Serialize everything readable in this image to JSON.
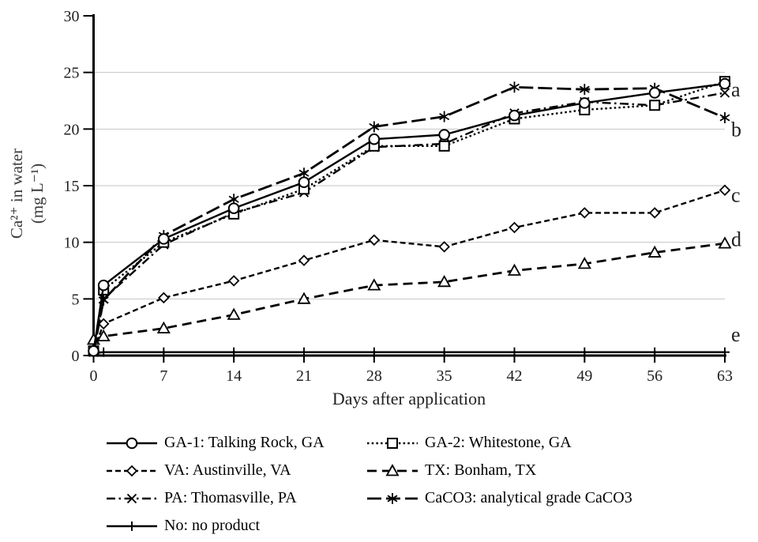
{
  "chart_data": {
    "type": "line",
    "xlabel": "Days after application",
    "ylabel_line1": "Ca²⁺ in water",
    "ylabel_line2": "(mg L⁻¹)",
    "x": [
      0,
      1,
      7,
      14,
      21,
      28,
      35,
      42,
      49,
      56,
      63
    ],
    "xticks": [
      0,
      7,
      14,
      21,
      28,
      35,
      42,
      49,
      56,
      63
    ],
    "yticks": [
      0,
      5,
      10,
      15,
      20,
      25,
      30
    ],
    "xlim": [
      0,
      63
    ],
    "ylim": [
      0,
      30
    ],
    "grid": "horizontal-only",
    "grid_color": "#c4c4c4",
    "line_color": "#000000",
    "legend_position": "bottom",
    "series": [
      {
        "key": "GA-1",
        "name": "GA-1: Talking Rock, GA",
        "marker": "circle",
        "line": "solid",
        "values": [
          0.4,
          6.2,
          10.3,
          13.0,
          15.3,
          19.1,
          19.5,
          21.2,
          22.3,
          23.2,
          24.0
        ]
      },
      {
        "key": "GA-2",
        "name": "GA-2: Whitestone, GA",
        "marker": "square",
        "line": "dotted",
        "values": [
          0.4,
          5.8,
          10.0,
          12.5,
          14.7,
          18.5,
          18.5,
          20.9,
          21.7,
          22.1,
          24.2
        ]
      },
      {
        "key": "VA",
        "name": "VA: Austinville, VA",
        "marker": "diamond",
        "line": "dashed",
        "values": [
          0.4,
          2.8,
          5.1,
          6.6,
          8.4,
          10.2,
          9.6,
          11.3,
          12.6,
          12.6,
          14.6
        ]
      },
      {
        "key": "TX",
        "name": "TX: Bonham, TX",
        "marker": "triangle",
        "line": "longdash",
        "values": [
          1.4,
          1.7,
          2.4,
          3.6,
          5.0,
          6.2,
          6.5,
          7.5,
          8.1,
          9.1,
          9.9
        ]
      },
      {
        "key": "PA",
        "name": "PA: Thomasville, PA",
        "marker": "x",
        "line": "dashdot",
        "values": [
          0.3,
          5.0,
          9.8,
          12.6,
          14.4,
          18.4,
          18.7,
          21.4,
          22.4,
          22.1,
          23.2
        ]
      },
      {
        "key": "CaCO3",
        "name": "CaCO3: analytical grade CaCO3",
        "marker": "asterisk",
        "line": "longdash2",
        "values": [
          0.3,
          4.9,
          10.6,
          13.8,
          16.1,
          20.2,
          21.1,
          23.7,
          23.5,
          23.6,
          21.0
        ]
      },
      {
        "key": "No",
        "name": "No: no product",
        "marker": "plus",
        "line": "solid",
        "values": [
          0.2,
          0.3,
          0.3,
          0.3,
          0.3,
          0.3,
          0.3,
          0.3,
          0.3,
          0.3,
          0.3
        ]
      }
    ],
    "annotations": [
      {
        "label": "a",
        "y": 23.5
      },
      {
        "label": "b",
        "y": 20.0
      },
      {
        "label": "c",
        "y": 14.2
      },
      {
        "label": "d",
        "y": 10.3
      },
      {
        "label": "e",
        "y": 1.9
      }
    ]
  }
}
